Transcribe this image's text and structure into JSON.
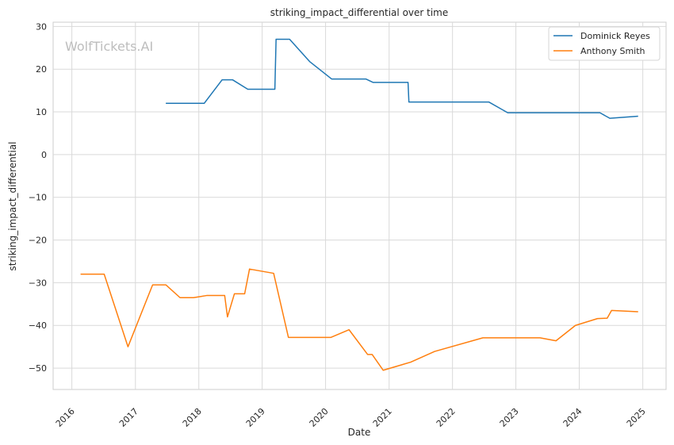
{
  "chart_data": {
    "type": "line",
    "title": "striking_impact_differential over time",
    "xlabel": "Date",
    "ylabel": "striking_impact_differential",
    "watermark": "WolfTickets.AI",
    "xlim": [
      "2015-09-15",
      "2025-05-15"
    ],
    "ylim": [
      -55,
      31
    ],
    "x_ticks": [
      "2016",
      "2017",
      "2018",
      "2019",
      "2020",
      "2021",
      "2022",
      "2023",
      "2024",
      "2025"
    ],
    "y_ticks": [
      -50,
      -40,
      -30,
      -20,
      -10,
      0,
      10,
      20,
      30
    ],
    "grid": true,
    "legend_position": "top-right",
    "series": [
      {
        "name": "Dominick Reyes",
        "color": "#1f77b4",
        "points": [
          [
            "2017-06-25",
            12.0
          ],
          [
            "2018-02-01",
            12.0
          ],
          [
            "2018-05-15",
            17.5
          ],
          [
            "2018-07-15",
            17.5
          ],
          [
            "2018-10-10",
            15.3
          ],
          [
            "2019-03-15",
            15.3
          ],
          [
            "2019-03-22",
            27.0
          ],
          [
            "2019-06-08",
            27.0
          ],
          [
            "2019-10-01",
            21.8
          ],
          [
            "2020-02-05",
            17.7
          ],
          [
            "2020-08-20",
            17.7
          ],
          [
            "2020-10-01",
            16.9
          ],
          [
            "2021-04-20",
            16.9
          ],
          [
            "2021-04-25",
            12.3
          ],
          [
            "2022-07-30",
            12.3
          ],
          [
            "2022-11-15",
            9.8
          ],
          [
            "2024-04-29",
            9.8
          ],
          [
            "2024-06-25",
            8.5
          ],
          [
            "2024-12-05",
            9.0
          ]
        ]
      },
      {
        "name": "Anthony Smith",
        "color": "#ff7f0e",
        "points": [
          [
            "2016-02-20",
            -28.0
          ],
          [
            "2016-07-05",
            -28.0
          ],
          [
            "2016-11-19",
            -45.0
          ],
          [
            "2017-04-10",
            -30.5
          ],
          [
            "2017-06-25",
            -30.5
          ],
          [
            "2017-09-15",
            -33.5
          ],
          [
            "2017-12-01",
            -33.5
          ],
          [
            "2018-02-15",
            -33.0
          ],
          [
            "2018-05-30",
            -33.0
          ],
          [
            "2018-06-15",
            -38.0
          ],
          [
            "2018-07-25",
            -32.6
          ],
          [
            "2018-09-22",
            -32.6
          ],
          [
            "2018-10-20",
            -26.8
          ],
          [
            "2019-03-08",
            -27.8
          ],
          [
            "2019-06-01",
            -42.8
          ],
          [
            "2020-02-01",
            -42.8
          ],
          [
            "2020-05-15",
            -41.0
          ],
          [
            "2020-08-30",
            -46.8
          ],
          [
            "2020-09-25",
            -46.8
          ],
          [
            "2020-11-28",
            -50.5
          ],
          [
            "2021-05-05",
            -48.6
          ],
          [
            "2021-09-20",
            -46.1
          ],
          [
            "2022-06-25",
            -42.9
          ],
          [
            "2023-05-20",
            -42.9
          ],
          [
            "2023-08-20",
            -43.6
          ],
          [
            "2023-12-10",
            -40.0
          ],
          [
            "2024-04-15",
            -38.4
          ],
          [
            "2024-06-10",
            -38.3
          ],
          [
            "2024-07-05",
            -36.5
          ],
          [
            "2024-12-05",
            -36.8
          ]
        ]
      }
    ]
  }
}
